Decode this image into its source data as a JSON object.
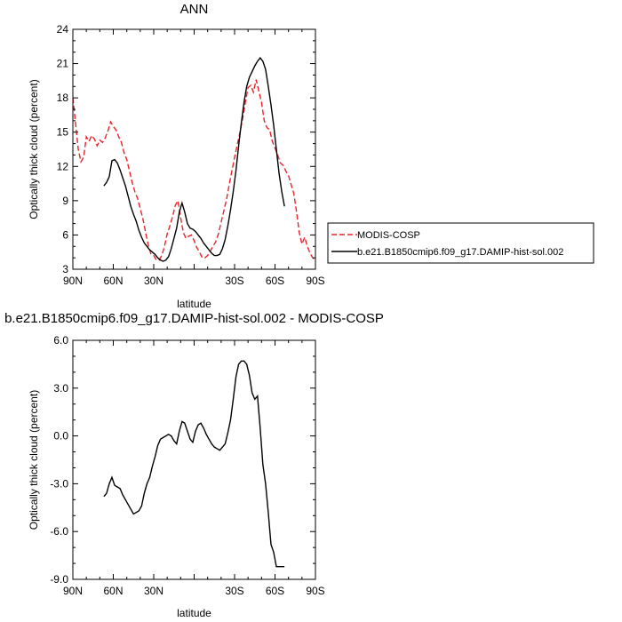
{
  "chart_data": [
    {
      "type": "line",
      "title": "ANN",
      "xlabel": "latitude",
      "ylabel": "Optically thick cloud (percent)",
      "xlim": [
        90,
        -90
      ],
      "ylim": [
        3,
        24
      ],
      "x_ticks": [
        90,
        60,
        30,
        0,
        -30,
        -60,
        -90
      ],
      "x_tick_labels": [
        "90N",
        "60N",
        "30N",
        "",
        "30S",
        "60S",
        "90S"
      ],
      "y_ticks": [
        3,
        6,
        9,
        12,
        15,
        18,
        21,
        24
      ],
      "y_tick_labels": [
        "3",
        "6",
        "9",
        "12",
        "15",
        "18",
        "21",
        "24"
      ],
      "grid": false,
      "legend_position": "right",
      "series": [
        {
          "name": "MODIS-COSP",
          "color": "#e8232b",
          "dash": "dashed",
          "x": [
            90,
            88,
            86,
            84,
            82,
            80,
            78,
            76,
            74,
            72,
            70,
            68,
            66,
            64,
            62,
            60,
            58,
            56,
            54,
            52,
            50,
            48,
            46,
            44,
            42,
            40,
            38,
            36,
            34,
            32,
            30,
            28,
            26,
            24,
            22,
            20,
            18,
            16,
            14,
            12,
            10,
            8,
            6,
            4,
            2,
            0,
            -2,
            -4,
            -6,
            -8,
            -10,
            -12,
            -14,
            -16,
            -18,
            -20,
            -22,
            -24,
            -26,
            -28,
            -30,
            -32,
            -34,
            -36,
            -38,
            -40,
            -42,
            -44,
            -46,
            -48,
            -50,
            -52,
            -54,
            -56,
            -58,
            -60,
            -62,
            -64,
            -66,
            -68,
            -70,
            -72,
            -74,
            -76,
            -78,
            -80,
            -82,
            -84,
            -86,
            -88,
            -90
          ],
          "values": [
            18.0,
            15.8,
            13.5,
            12.4,
            12.8,
            14.6,
            14.2,
            14.7,
            14.4,
            13.8,
            14.3,
            14.1,
            14.5,
            15.1,
            15.9,
            15.5,
            15.2,
            14.6,
            14.1,
            13.2,
            12.6,
            11.6,
            10.6,
            9.8,
            9.2,
            8.3,
            7.4,
            6.2,
            5.1,
            4.3,
            4.2,
            3.8,
            3.8,
            4.2,
            5.0,
            6.1,
            6.8,
            7.6,
            8.6,
            9.0,
            7.5,
            6.2,
            5.7,
            5.9,
            6.0,
            5.5,
            4.9,
            4.5,
            4.0,
            4.0,
            4.2,
            4.6,
            5.0,
            5.4,
            6.1,
            7.1,
            8.1,
            9.1,
            10.4,
            11.6,
            12.8,
            13.9,
            15.0,
            16.2,
            17.6,
            18.9,
            19.1,
            18.5,
            19.6,
            18.6,
            17.6,
            16.0,
            15.4,
            15.2,
            14.2,
            13.6,
            13.0,
            12.3,
            12.1,
            11.6,
            11.2,
            10.4,
            9.6,
            8.0,
            6.2,
            5.2,
            5.8,
            5.0,
            4.4,
            4.0,
            3.8
          ]
        },
        {
          "name": "b.e21.B1850cmip6.f09_g17.DAMIP-hist-sol.002",
          "color": "#000000",
          "dash": "solid",
          "x": [
            67,
            65,
            63,
            61,
            59,
            57,
            55,
            53,
            51,
            49,
            47,
            45,
            43,
            41,
            39,
            37,
            35,
            33,
            31,
            29,
            27,
            25,
            23,
            21,
            19,
            17,
            15,
            13,
            11,
            9,
            7,
            5,
            3,
            1,
            -1,
            -3,
            -5,
            -7,
            -9,
            -11,
            -13,
            -15,
            -17,
            -19,
            -21,
            -23,
            -25,
            -27,
            -29,
            -31,
            -33,
            -35,
            -37,
            -39,
            -41,
            -43,
            -45,
            -47,
            -49,
            -51,
            -53,
            -55,
            -57,
            -59,
            -61,
            -63,
            -65,
            -67
          ],
          "values": [
            10.3,
            10.6,
            11.1,
            12.5,
            12.6,
            12.3,
            11.7,
            11.0,
            10.3,
            9.4,
            8.5,
            7.8,
            7.2,
            6.4,
            5.8,
            5.3,
            5.0,
            4.7,
            4.5,
            4.3,
            4.0,
            3.8,
            3.7,
            3.8,
            4.1,
            4.8,
            5.7,
            6.6,
            8.0,
            8.8,
            8.0,
            7.0,
            6.6,
            6.5,
            6.3,
            6.0,
            5.7,
            5.3,
            5.0,
            4.7,
            4.4,
            4.2,
            4.2,
            4.3,
            4.8,
            5.6,
            6.8,
            8.2,
            9.8,
            11.6,
            13.8,
            15.8,
            17.6,
            19.0,
            19.8,
            20.3,
            20.8,
            21.2,
            21.5,
            21.2,
            20.5,
            19.0,
            17.4,
            15.6,
            13.5,
            11.4,
            9.8,
            8.5
          ]
        }
      ]
    },
    {
      "type": "line",
      "title": "b.e21.B1850cmip6.f09_g17.DAMIP-hist-sol.002 - MODIS-COSP",
      "xlabel": "latitude",
      "ylabel": "Optically thick cloud (percent)",
      "xlim": [
        90,
        -90
      ],
      "ylim": [
        -9,
        6
      ],
      "x_ticks": [
        90,
        60,
        30,
        0,
        -30,
        -60,
        -90
      ],
      "x_tick_labels": [
        "90N",
        "60N",
        "30N",
        "",
        "30S",
        "60S",
        "90S"
      ],
      "y_ticks": [
        -9,
        -6,
        -3,
        0,
        3,
        6
      ],
      "y_tick_labels": [
        "-9.0",
        "-6.0",
        "-3.0",
        "0.0",
        "3.0",
        "6.0"
      ],
      "grid": false,
      "series": [
        {
          "color": "#000000",
          "dash": "solid",
          "x": [
            67,
            65,
            63,
            61,
            59,
            57,
            55,
            53,
            51,
            49,
            47,
            45,
            43,
            41,
            39,
            37,
            35,
            33,
            31,
            29,
            27,
            25,
            23,
            21,
            19,
            17,
            15,
            13,
            11,
            9,
            7,
            5,
            3,
            1,
            -1,
            -3,
            -5,
            -7,
            -9,
            -11,
            -13,
            -15,
            -17,
            -19,
            -21,
            -23,
            -25,
            -27,
            -29,
            -31,
            -33,
            -35,
            -37,
            -39,
            -41,
            -43,
            -45,
            -47,
            -49,
            -51,
            -53,
            -55,
            -57,
            -59,
            -61,
            -63,
            -65,
            -67
          ],
          "values": [
            -3.8,
            -3.6,
            -3.0,
            -2.6,
            -3.1,
            -3.2,
            -3.3,
            -3.7,
            -4.0,
            -4.3,
            -4.6,
            -4.9,
            -4.8,
            -4.7,
            -4.4,
            -3.6,
            -3.0,
            -2.6,
            -1.9,
            -1.3,
            -0.6,
            -0.2,
            -0.1,
            0.0,
            0.1,
            0.0,
            -0.3,
            -0.5,
            0.3,
            0.9,
            0.8,
            0.3,
            -0.2,
            -0.4,
            0.3,
            0.7,
            0.8,
            0.5,
            0.1,
            -0.2,
            -0.5,
            -0.7,
            -0.8,
            -0.9,
            -0.7,
            -0.5,
            0.2,
            1.0,
            2.3,
            3.7,
            4.5,
            4.7,
            4.7,
            4.5,
            3.8,
            2.7,
            2.3,
            2.5,
            0.5,
            -1.8,
            -3.0,
            -4.8,
            -6.8,
            -7.3,
            -8.2,
            -8.2,
            -8.2,
            -8.2
          ]
        }
      ]
    }
  ]
}
